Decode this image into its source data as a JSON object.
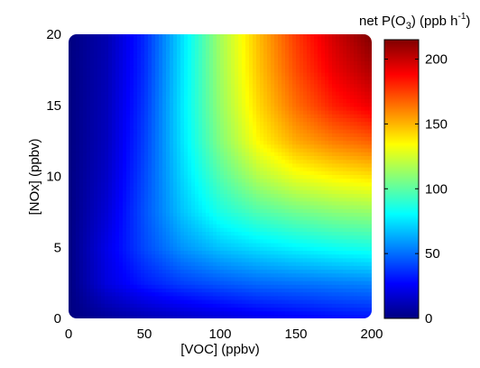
{
  "chart_data": {
    "type": "heatmap",
    "title": "",
    "xlabel": "[VOC] (ppbv)",
    "ylabel": "[NOx] (ppbv)",
    "colorbar_label": {
      "prefix": "net P(O",
      "subscript": "3",
      "middle": ") (ppb  h",
      "superscript": "-1",
      "suffix": ")"
    },
    "xlim": [
      0,
      200
    ],
    "ylim": [
      0,
      20
    ],
    "x_ticks": [
      0,
      50,
      100,
      150,
      200
    ],
    "y_ticks": [
      0,
      5,
      10,
      15,
      20
    ],
    "color_range": [
      0,
      215
    ],
    "colorbar_ticks": [
      0,
      50,
      100,
      150,
      200
    ],
    "colormap": "jet",
    "grid": false,
    "x": [
      0,
      25,
      50,
      75,
      100,
      125,
      150,
      175,
      200
    ],
    "y": [
      0,
      2.5,
      5,
      7.5,
      10,
      12.5,
      15,
      17.5,
      20
    ],
    "z": [
      [
        0,
        5,
        10,
        14,
        18,
        22,
        25,
        28,
        30
      ],
      [
        0,
        20,
        32,
        40,
        45,
        49,
        51,
        53,
        55
      ],
      [
        0,
        22,
        42,
        58,
        68,
        74,
        79,
        83,
        86
      ],
      [
        0,
        18,
        44,
        68,
        86,
        97,
        104,
        109,
        112
      ],
      [
        0,
        15,
        42,
        72,
        98,
        118,
        130,
        136,
        140
      ],
      [
        0,
        13,
        40,
        75,
        108,
        135,
        152,
        162,
        168
      ],
      [
        0,
        12,
        38,
        76,
        112,
        142,
        165,
        182,
        192
      ],
      [
        0,
        11,
        36,
        75,
        114,
        146,
        172,
        192,
        205
      ],
      [
        0,
        10,
        35,
        74,
        115,
        148,
        176,
        198,
        215
      ]
    ]
  }
}
